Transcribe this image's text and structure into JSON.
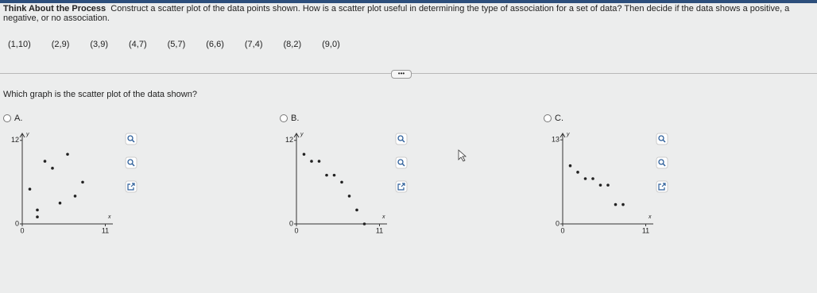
{
  "header": {
    "title": "Think About the Process",
    "text": "Construct a scatter plot of the data points shown. How is a scatter plot useful in determining the type of association for a set of data? Then decide if the data shows a positive, a negative, or no association."
  },
  "data_points": [
    "(1,10)",
    "(2,9)",
    "(3,9)",
    "(4,7)",
    "(5,7)",
    "(6,6)",
    "(7,4)",
    "(8,2)",
    "(9,0)"
  ],
  "question": "Which graph is the scatter plot of the data shown?",
  "options": [
    {
      "label": "A.",
      "chart": {
        "type": "scatter",
        "x": [
          1,
          2,
          3,
          4,
          5,
          6,
          7,
          8,
          2
        ],
        "y": [
          5,
          1,
          9,
          8,
          3,
          10,
          4,
          6,
          2
        ],
        "xlim": [
          0,
          12
        ],
        "ylim": [
          0,
          13
        ],
        "xticks": [
          0,
          11
        ],
        "yticks": [
          0,
          12
        ],
        "x_label": "x",
        "y_label": "y"
      }
    },
    {
      "label": "B.",
      "chart": {
        "type": "scatter",
        "x": [
          1,
          2,
          3,
          4,
          5,
          6,
          7,
          8,
          9
        ],
        "y": [
          10,
          9,
          9,
          7,
          7,
          6,
          4,
          2,
          0
        ],
        "xlim": [
          0,
          12
        ],
        "ylim": [
          0,
          13
        ],
        "xticks": [
          0,
          11
        ],
        "yticks": [
          0,
          12
        ],
        "x_label": "x",
        "y_label": "y"
      }
    },
    {
      "label": "C.",
      "chart": {
        "type": "scatter",
        "x": [
          1,
          2,
          3,
          4,
          5,
          6,
          7,
          8
        ],
        "y": [
          9,
          8,
          7,
          7,
          6,
          6,
          3,
          3
        ],
        "xlim": [
          0,
          12
        ],
        "ylim": [
          0,
          14
        ],
        "xticks": [
          0,
          11
        ],
        "yticks": [
          0,
          13
        ],
        "x_label": "x",
        "y_label": "y"
      }
    }
  ]
}
